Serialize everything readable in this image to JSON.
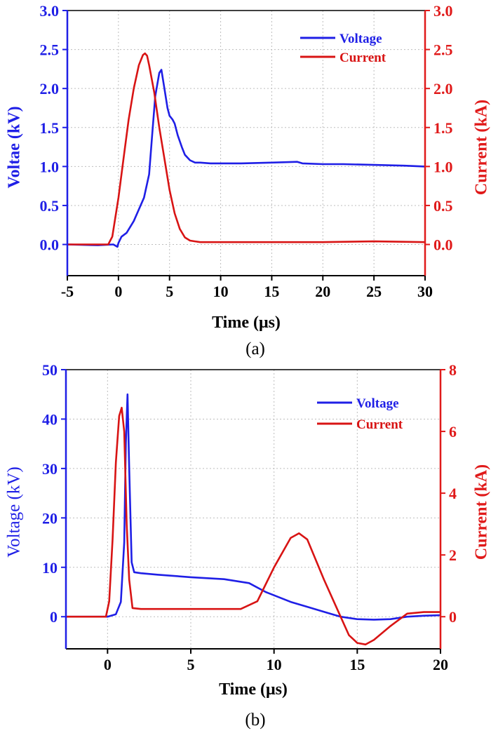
{
  "chart_data": [
    {
      "type": "line",
      "caption": "(a)",
      "xlabel": "Time (μs)",
      "ylabel_left": "Voltae (kV)",
      "ylabel_right": "Current (kA)",
      "xlim": [
        -5,
        30
      ],
      "ylim_left": [
        -0.4,
        3.0
      ],
      "ylim_right": [
        -0.4,
        3.0
      ],
      "xticks": [
        "-5",
        "0",
        "5",
        "10",
        "15",
        "20",
        "25",
        "30"
      ],
      "yticks_left": [
        "0.0",
        "0.5",
        "1.0",
        "1.5",
        "2.0",
        "2.5",
        "3.0"
      ],
      "yticks_right": [
        "0.0",
        "0.5",
        "1.0",
        "1.5",
        "2.0",
        "2.5",
        "3.0"
      ],
      "grid": true,
      "legend_position": "top-right",
      "colors": {
        "left_axis": "#1f1fe6",
        "right_axis": "#e01a1a",
        "voltage": "#1f1fe6",
        "current": "#d81414"
      },
      "series": [
        {
          "name": "Voltage",
          "axis": "left",
          "x": [
            -5,
            -2,
            -0.5,
            -0.1,
            0.0,
            0.3,
            0.8,
            1.5,
            2.0,
            2.5,
            3.0,
            3.3,
            3.6,
            4.0,
            4.2,
            4.5,
            4.8,
            5.0,
            5.3,
            5.5,
            5.8,
            6.2,
            6.5,
            7.0,
            7.5,
            8.0,
            9.0,
            10,
            12,
            15,
            17.5,
            18,
            20,
            22,
            25,
            28,
            30
          ],
          "y": [
            0.0,
            -0.01,
            0.0,
            -0.03,
            0.02,
            0.1,
            0.15,
            0.3,
            0.45,
            0.6,
            0.9,
            1.4,
            1.9,
            2.2,
            2.24,
            2.0,
            1.75,
            1.65,
            1.6,
            1.55,
            1.4,
            1.25,
            1.15,
            1.08,
            1.05,
            1.05,
            1.04,
            1.04,
            1.04,
            1.05,
            1.06,
            1.04,
            1.03,
            1.03,
            1.02,
            1.01,
            1.0
          ]
        },
        {
          "name": "Current",
          "axis": "right",
          "x": [
            -5,
            -2,
            -1.0,
            -0.6,
            0.0,
            0.5,
            1.0,
            1.5,
            2.0,
            2.4,
            2.6,
            2.8,
            3.0,
            3.5,
            4.0,
            4.5,
            5.0,
            5.5,
            6.0,
            6.5,
            7.0,
            7.5,
            8.0,
            10,
            15,
            20,
            25,
            30
          ],
          "y": [
            0.0,
            0.0,
            0.0,
            0.1,
            0.6,
            1.1,
            1.6,
            2.0,
            2.3,
            2.43,
            2.45,
            2.42,
            2.3,
            1.95,
            1.5,
            1.1,
            0.7,
            0.4,
            0.2,
            0.09,
            0.05,
            0.04,
            0.03,
            0.03,
            0.03,
            0.03,
            0.04,
            0.03
          ]
        }
      ]
    },
    {
      "type": "line",
      "caption": "(b)",
      "xlabel": "Time (μs)",
      "ylabel_left": "Voltage (kV)",
      "ylabel_right": "Current (kA)",
      "xlim": [
        -2.5,
        20
      ],
      "ylim_left": [
        -6.5,
        50
      ],
      "ylim_right": [
        -1.04,
        8
      ],
      "xticks": [
        "0",
        "5",
        "10",
        "15",
        "20"
      ],
      "yticks_left": [
        "0",
        "10",
        "20",
        "30",
        "40",
        "50"
      ],
      "yticks_right": [
        "0",
        "2",
        "4",
        "6",
        "8"
      ],
      "grid": true,
      "legend_position": "top-right",
      "colors": {
        "left_axis": "#1f1fe6",
        "right_axis": "#e01a1a",
        "voltage": "#1f1fe6",
        "current": "#d81414"
      },
      "series": [
        {
          "name": "Voltage",
          "axis": "left",
          "x": [
            -2.5,
            0,
            0.5,
            0.8,
            1.0,
            1.1,
            1.2,
            1.3,
            1.45,
            1.6,
            2.0,
            3.0,
            5.0,
            7.0,
            8.5,
            9.5,
            11,
            12,
            13,
            14,
            15,
            16,
            17,
            18,
            19,
            20
          ],
          "y": [
            0.0,
            0.0,
            0.5,
            3.0,
            15.0,
            35.0,
            45.0,
            30.0,
            11.0,
            9.0,
            8.8,
            8.5,
            8.0,
            7.6,
            6.8,
            5.0,
            3.0,
            2.0,
            1.0,
            0.0,
            -0.5,
            -0.6,
            -0.5,
            0.0,
            0.2,
            0.3
          ]
        },
        {
          "name": "Current",
          "axis": "right",
          "x": [
            -2.5,
            -0.1,
            0.1,
            0.3,
            0.5,
            0.7,
            0.85,
            1.0,
            1.15,
            1.3,
            1.5,
            2.0,
            5.0,
            8.0,
            9.0,
            10.0,
            11.0,
            11.5,
            12.0,
            13.0,
            14.0,
            14.5,
            15.0,
            15.5,
            16.0,
            17.0,
            18.0,
            19.0,
            20.0
          ],
          "y": [
            0.0,
            0.0,
            0.5,
            2.5,
            5.0,
            6.5,
            6.77,
            6.0,
            3.0,
            1.2,
            0.28,
            0.25,
            0.25,
            0.25,
            0.5,
            1.6,
            2.55,
            2.7,
            2.5,
            1.2,
            0.0,
            -0.6,
            -0.85,
            -0.9,
            -0.75,
            -0.3,
            0.1,
            0.15,
            0.15
          ]
        }
      ]
    }
  ]
}
